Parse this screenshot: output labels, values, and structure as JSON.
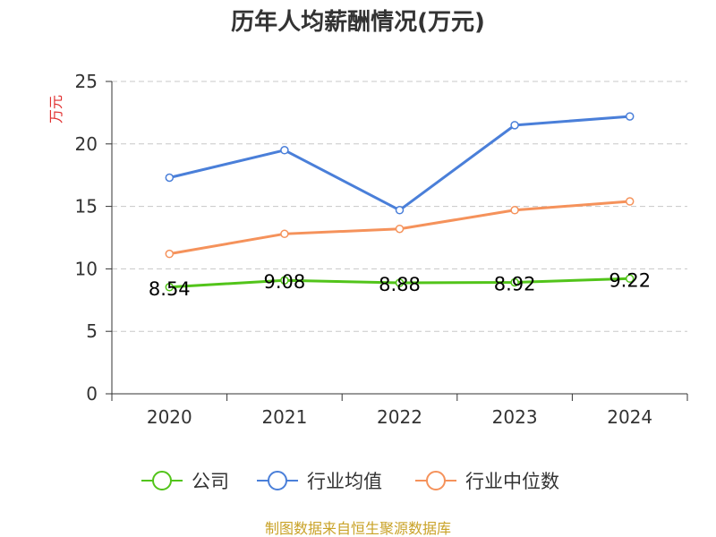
{
  "chart_data": {
    "type": "line",
    "title": "历年人均薪酬情况(万元)",
    "ylabel": "万元",
    "xlabel": "",
    "categories": [
      "2020",
      "2021",
      "2022",
      "2023",
      "2024"
    ],
    "ylim": [
      0,
      25
    ],
    "yticks": [
      0,
      5,
      10,
      15,
      20,
      25
    ],
    "series": [
      {
        "name": "公司",
        "color": "#52c41a",
        "values": [
          8.54,
          9.08,
          8.88,
          8.92,
          9.22
        ],
        "labels": [
          "8.54",
          "9.08",
          "8.88",
          "8.92",
          "9.22"
        ]
      },
      {
        "name": "行业均值",
        "color": "#4a7fd9",
        "values": [
          17.3,
          19.5,
          14.7,
          21.5,
          22.2
        ]
      },
      {
        "name": "行业中位数",
        "color": "#f5925b",
        "values": [
          11.2,
          12.8,
          13.2,
          14.7,
          15.4
        ]
      }
    ],
    "grid": true,
    "legend_position": "bottom"
  },
  "footer": {
    "source": "制图数据来自恒生聚源数据库"
  }
}
